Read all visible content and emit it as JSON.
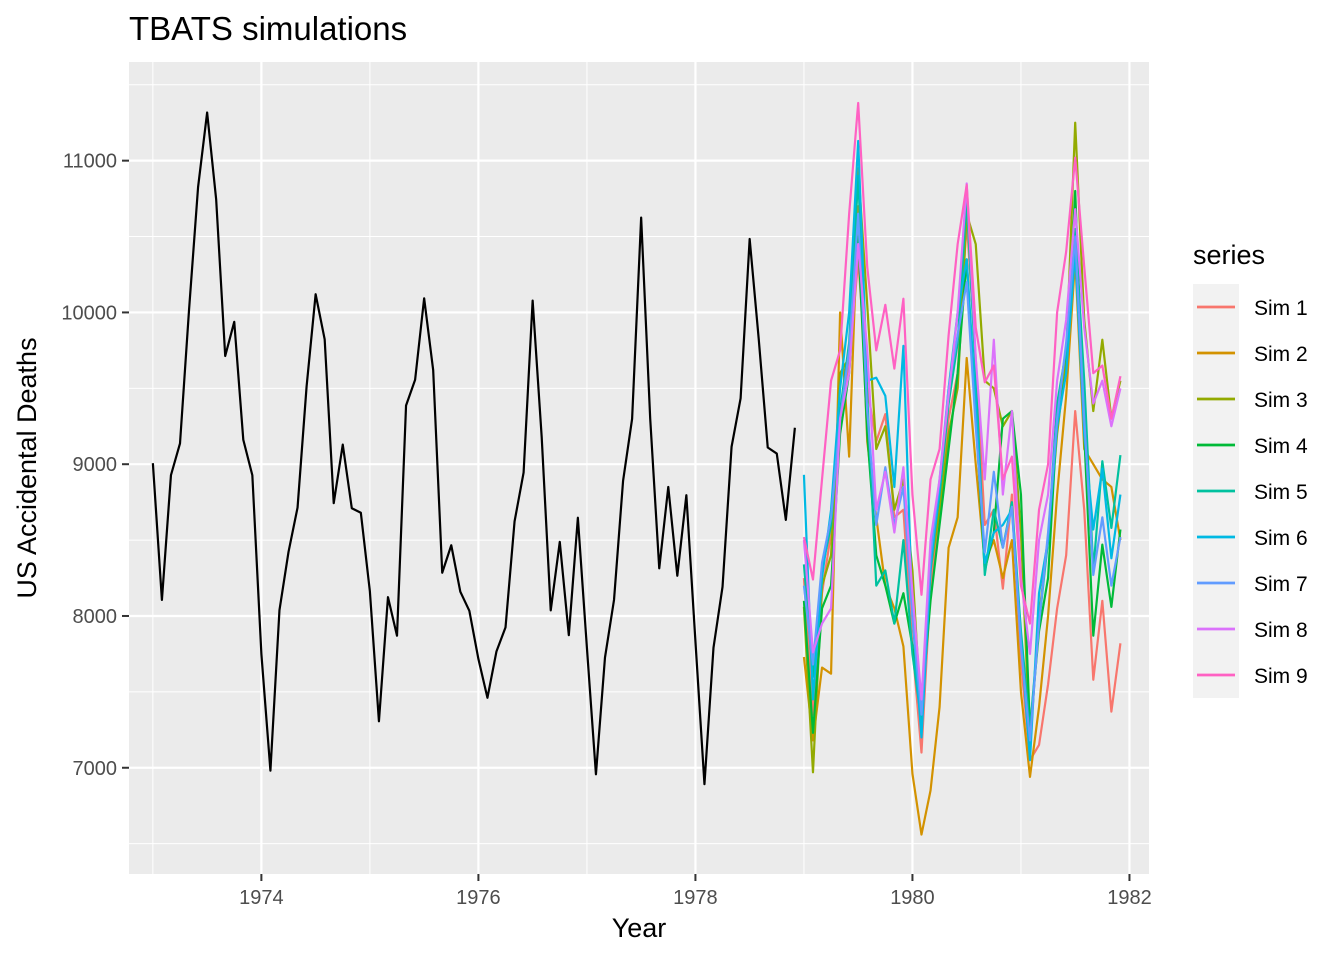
{
  "chart_data": {
    "type": "line",
    "title": "TBATS simulations",
    "xlabel": "Year",
    "ylabel": "US Accidental Deaths",
    "xlim": [
      1972.78,
      1982.18
    ],
    "ylim": [
      6300,
      11650
    ],
    "x_ticks": [
      1974,
      1976,
      1978,
      1980,
      1982
    ],
    "y_ticks": [
      7000,
      8000,
      9000,
      10000,
      11000
    ],
    "grid": true,
    "legend": {
      "title": "series",
      "placement": "right"
    },
    "observed": {
      "start": 1973.0,
      "step": 0.08333,
      "color": "#000000",
      "values": [
        9007,
        8106,
        8928,
        9137,
        10017,
        10826,
        11317,
        10744,
        9713,
        9938,
        9161,
        8927,
        7750,
        6981,
        8038,
        8422,
        8714,
        9512,
        10120,
        9823,
        8743,
        9129,
        8710,
        8680,
        8162,
        7306,
        8124,
        7870,
        9387,
        9556,
        10093,
        9620,
        8285,
        8466,
        8160,
        8034,
        7717,
        7461,
        7767,
        7925,
        8623,
        8945,
        10078,
        9179,
        8037,
        8488,
        7874,
        8647,
        7792,
        6957,
        7726,
        8106,
        8890,
        9299,
        10625,
        9302,
        8314,
        8850,
        8265,
        8796,
        7836,
        6892,
        7791,
        8192,
        9115,
        9434,
        10484,
        9827,
        9110,
        9070,
        8633,
        9240
      ]
    },
    "simulations": {
      "start": 1979.0,
      "step": 0.08333,
      "series": [
        {
          "name": "Sim 1",
          "color": "#F8766D",
          "values": [
            8250,
            7350,
            8150,
            8550,
            9300,
            9650,
            10350,
            9500,
            9150,
            9330,
            8650,
            8700,
            7800,
            7100,
            8200,
            8650,
            9300,
            9600,
            10600,
            9700,
            8600,
            8700,
            8180,
            8800,
            7700,
            7050,
            7150,
            7550,
            8050,
            8400,
            9350,
            8700,
            7580,
            8100,
            7370,
            7820
          ]
        },
        {
          "name": "Sim 2",
          "color": "#D39200",
          "values": [
            7730,
            7180,
            7660,
            7620,
            10000,
            9050,
            10700,
            9150,
            8650,
            8200,
            8050,
            7800,
            6960,
            6560,
            6850,
            7400,
            8450,
            8650,
            9700,
            9000,
            8350,
            8500,
            8250,
            8500,
            7500,
            6940,
            7400,
            8000,
            8800,
            9450,
            10350,
            9100,
            9000,
            8900,
            8850,
            8500
          ]
        },
        {
          "name": "Sim 3",
          "color": "#93AA00",
          "values": [
            8060,
            6970,
            8200,
            8400,
            9600,
            9700,
            10950,
            10050,
            9100,
            9250,
            8700,
            8900,
            8300,
            7300,
            8300,
            8700,
            9200,
            9500,
            10650,
            10450,
            9550,
            9500,
            9250,
            9350,
            8550,
            7150,
            8000,
            8500,
            9200,
            9700,
            11250,
            9950,
            9350,
            9820,
            9300,
            9550
          ]
        },
        {
          "name": "Sim 4",
          "color": "#00BA38",
          "values": [
            8100,
            7230,
            8050,
            8200,
            9200,
            9600,
            10500,
            9200,
            8400,
            8200,
            7950,
            8150,
            7800,
            7400,
            8100,
            8600,
            9100,
            9600,
            10350,
            9300,
            8300,
            8550,
            9300,
            9350,
            8800,
            7250,
            7900,
            8250,
            9300,
            9600,
            10800,
            9200,
            7870,
            8470,
            8060,
            8570
          ]
        },
        {
          "name": "Sim 5",
          "color": "#00C19F",
          "values": [
            8340,
            7600,
            8300,
            8600,
            9350,
            9800,
            10900,
            9450,
            8200,
            8300,
            7950,
            8500,
            7750,
            7300,
            8350,
            8800,
            9400,
            9800,
            10750,
            9600,
            8270,
            8700,
            8450,
            8750,
            7900,
            7250,
            7950,
            8500,
            9400,
            9750,
            10550,
            9550,
            8300,
            9020,
            8580,
            9060
          ]
        },
        {
          "name": "Sim 6",
          "color": "#00B9E3",
          "values": [
            8930,
            7450,
            8250,
            8700,
            9500,
            10000,
            11130,
            9550,
            9570,
            9450,
            8850,
            9780,
            8000,
            7200,
            8300,
            8850,
            9500,
            10000,
            10350,
            9400,
            8350,
            8550,
            8600,
            8700,
            7850,
            7050,
            8150,
            8500,
            9250,
            9600,
            10400,
            9200,
            8570,
            8970,
            8380,
            8800
          ]
        },
        {
          "name": "Sim 7",
          "color": "#619CFF",
          "values": [
            8200,
            7680,
            8350,
            8650,
            9300,
            9750,
            10650,
            9350,
            8600,
            8980,
            8600,
            8850,
            8000,
            7350,
            8400,
            8900,
            9500,
            9850,
            10200,
            9250,
            8420,
            8950,
            8450,
            8720,
            7800,
            7180,
            7950,
            8550,
            9300,
            9800,
            10500,
            9300,
            8270,
            8650,
            8200,
            8520
          ]
        },
        {
          "name": "Sim 8",
          "color": "#DB72FB",
          "values": [
            8500,
            7760,
            7950,
            8050,
            9300,
            9600,
            10450,
            9750,
            8700,
            8950,
            8550,
            8980,
            8150,
            7450,
            8500,
            8900,
            9450,
            10000,
            10850,
            9700,
            8900,
            9820,
            8800,
            9350,
            8250,
            7750,
            8500,
            8800,
            9550,
            9950,
            10680,
            9900,
            9400,
            9550,
            9250,
            9500
          ]
        },
        {
          "name": "Sim 9",
          "color": "#FF61C3",
          "values": [
            8520,
            8240,
            8900,
            9550,
            9750,
            10650,
            11380,
            10300,
            9750,
            10050,
            9630,
            10090,
            8800,
            8140,
            8900,
            9100,
            9850,
            10450,
            10840,
            9900,
            9540,
            9650,
            8900,
            9050,
            8200,
            7950,
            8700,
            9000,
            10000,
            10400,
            11020,
            10300,
            9600,
            9650,
            9300,
            9580
          ]
        }
      ]
    }
  }
}
